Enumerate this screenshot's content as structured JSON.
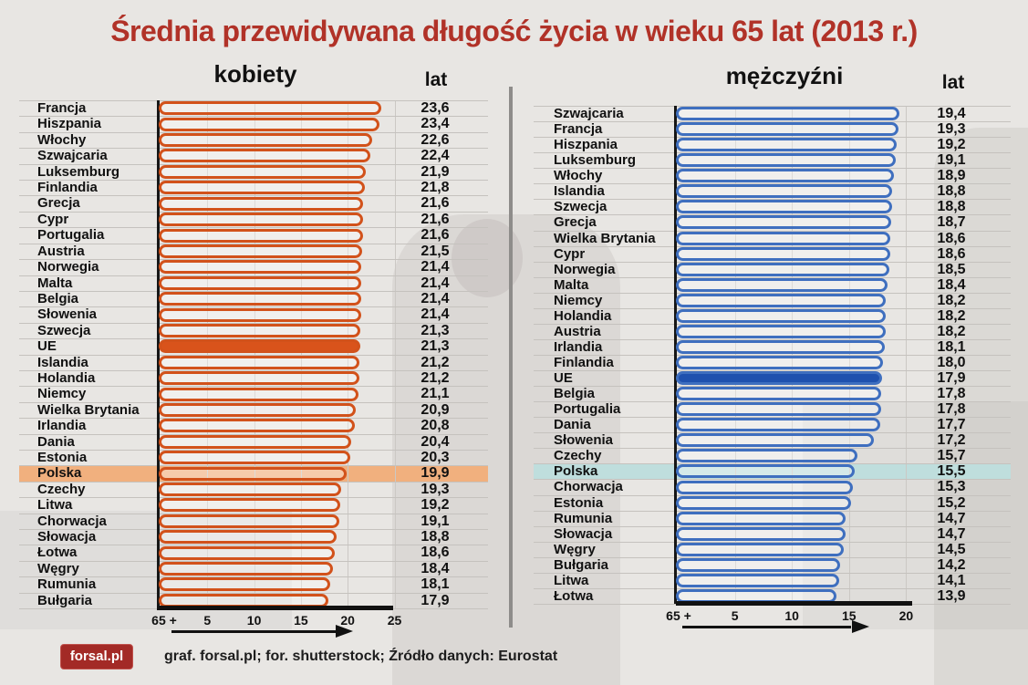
{
  "title": "Średnia przewidywana długość życia w wieku 65 lat (2013 r.)",
  "colors": {
    "title": "#b13228",
    "women_bar": "#d2521b",
    "women_emphasis_fill": "#d9531b",
    "women_highlight_band": "#f1b07e",
    "men_bar": "#3f6fbf",
    "men_emphasis_fill": "#1f51ae",
    "men_highlight_band": "#bfdedd",
    "logo_background": "#a32a26"
  },
  "chart_data": [
    {
      "type": "bar",
      "orientation": "horizontal",
      "group_title": "kobiety",
      "unit_header": "lat",
      "origin_label": "65 +",
      "ticks": [
        "5",
        "10",
        "15",
        "20",
        "25"
      ],
      "tick_values": [
        5,
        10,
        15,
        20,
        25
      ],
      "xlim": [
        0,
        25
      ],
      "grid": true,
      "emphasized_category": "UE",
      "highlighted_category": "Polska",
      "categories": [
        "Francja",
        "Hiszpania",
        "Włochy",
        "Szwajcaria",
        "Luksemburg",
        "Finlandia",
        "Grecja",
        "Cypr",
        "Portugalia",
        "Austria",
        "Norwegia",
        "Malta",
        "Belgia",
        "Słowenia",
        "Szwecja",
        "UE",
        "Islandia",
        "Holandia",
        "Niemcy",
        "Wielka Brytania",
        "Irlandia",
        "Dania",
        "Estonia",
        "Polska",
        "Czechy",
        "Litwa",
        "Chorwacja",
        "Słowacja",
        "Łotwa",
        "Węgry",
        "Rumunia",
        "Bułgaria"
      ],
      "values": [
        23.6,
        23.4,
        22.6,
        22.4,
        21.9,
        21.8,
        21.6,
        21.6,
        21.6,
        21.5,
        21.4,
        21.4,
        21.4,
        21.4,
        21.3,
        21.3,
        21.2,
        21.2,
        21.1,
        20.9,
        20.8,
        20.4,
        20.3,
        19.9,
        19.3,
        19.2,
        19.1,
        18.8,
        18.6,
        18.4,
        18.1,
        17.9
      ]
    },
    {
      "type": "bar",
      "orientation": "horizontal",
      "group_title": "mężczyźni",
      "unit_header": "lat",
      "origin_label": "65 +",
      "ticks": [
        "5",
        "10",
        "15",
        "20"
      ],
      "tick_values": [
        5,
        10,
        15,
        20
      ],
      "xlim": [
        0,
        20
      ],
      "grid": true,
      "emphasized_category": "UE",
      "highlighted_category": "Polska",
      "categories": [
        "Szwajcaria",
        "Francja",
        "Hiszpania",
        "Luksemburg",
        "Włochy",
        "Islandia",
        "Szwecja",
        "Grecja",
        "Wielka Brytania",
        "Cypr",
        "Norwegia",
        "Malta",
        "Niemcy",
        "Holandia",
        "Austria",
        "Irlandia",
        "Finlandia",
        "UE",
        "Belgia",
        "Portugalia",
        "Dania",
        "Słowenia",
        "Czechy",
        "Polska",
        "Chorwacja",
        "Estonia",
        "Rumunia",
        "Słowacja",
        "Węgry",
        "Bułgaria",
        "Litwa",
        "Łotwa"
      ],
      "values": [
        19.4,
        19.3,
        19.2,
        19.1,
        18.9,
        18.8,
        18.8,
        18.7,
        18.6,
        18.6,
        18.5,
        18.4,
        18.2,
        18.2,
        18.2,
        18.1,
        18.0,
        17.9,
        17.8,
        17.8,
        17.7,
        17.2,
        15.7,
        15.5,
        15.3,
        15.2,
        14.7,
        14.7,
        14.5,
        14.2,
        14.1,
        13.9
      ]
    }
  ],
  "footer": {
    "logo_text": "forsal.pl",
    "credit": "graf. forsal.pl; for. shutterstock;  Źródło danych:  Eurostat"
  }
}
